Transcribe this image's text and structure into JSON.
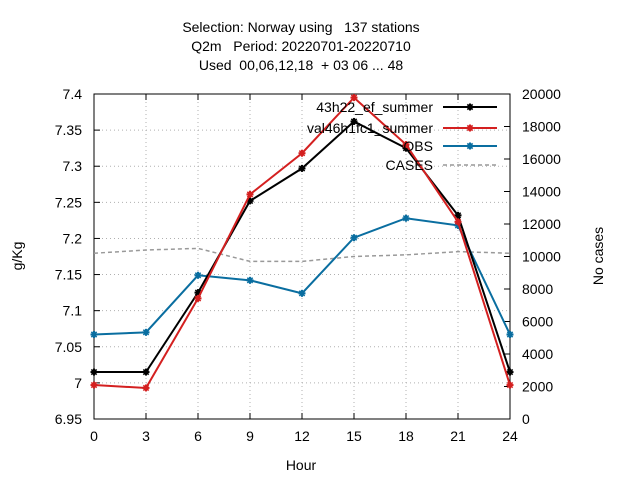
{
  "chart_data": {
    "type": "line",
    "title_lines": [
      "Selection: Norway using   137 stations",
      "Q2m   Period: 20220701-20220710",
      "Used  00,06,12,18  + 03 06 ... 48"
    ],
    "xlabel": "Hour",
    "ylabel": "g/Kg",
    "y2label": "No cases",
    "x": [
      0,
      3,
      6,
      9,
      12,
      15,
      18,
      21,
      24
    ],
    "xlim": [
      0,
      24
    ],
    "ylim": [
      6.95,
      7.4
    ],
    "y2lim": [
      0,
      20000
    ],
    "x_ticks": [
      "0",
      "3",
      "6",
      "9",
      "12",
      "15",
      "18",
      "21",
      "24"
    ],
    "y_ticks": [
      "6.95",
      "7",
      "7.05",
      "7.1",
      "7.15",
      "7.2",
      "7.25",
      "7.3",
      "7.35",
      "7.4"
    ],
    "y2_ticks": [
      "0",
      "2000",
      "4000",
      "6000",
      "8000",
      "10000",
      "12000",
      "14000",
      "16000",
      "18000",
      "20000"
    ],
    "grid": "dotted",
    "legend_position": "top-right",
    "series": [
      {
        "name": "43h22_ef_summer",
        "axis": "left",
        "color": "#000000",
        "style": "solid",
        "marker": "star",
        "values": [
          7.015,
          7.015,
          7.125,
          7.252,
          7.297,
          7.362,
          7.325,
          7.232,
          7.015
        ]
      },
      {
        "name": "val46h1fc1_summer",
        "axis": "left",
        "color": "#d42020",
        "style": "solid",
        "marker": "star",
        "values": [
          6.997,
          6.993,
          7.117,
          7.261,
          7.318,
          7.395,
          7.33,
          7.223,
          6.997
        ]
      },
      {
        "name": "OBS",
        "axis": "left",
        "color": "#0a6ea0",
        "style": "solid",
        "marker": "star",
        "values": [
          7.067,
          7.07,
          7.149,
          7.142,
          7.124,
          7.201,
          7.228,
          7.218,
          7.067
        ]
      },
      {
        "name": "CASES",
        "axis": "right",
        "color": "#999999",
        "style": "dashed",
        "marker": "none",
        "values": [
          10200,
          10400,
          10500,
          9700,
          9700,
          10000,
          10100,
          10300,
          10200
        ]
      }
    ]
  }
}
